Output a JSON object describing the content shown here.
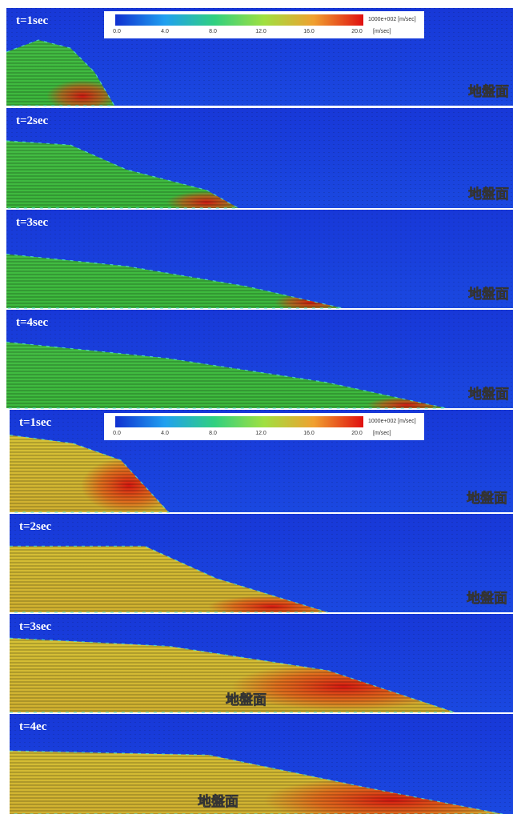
{
  "figure": {
    "groups": [
      {
        "colorbar": {
          "ticks": [
            "0.0",
            "4.0",
            "8.0",
            "12.0",
            "16.0",
            "20.0"
          ],
          "unit_top": "1000e+002 [m/sec]",
          "unit_bottom": "[m/sec]"
        },
        "panels": [
          {
            "label": "t=1sec",
            "ground_label": "地盤面"
          },
          {
            "label": "t=2sec",
            "ground_label": "地盤面"
          },
          {
            "label": "t=3sec",
            "ground_label": "地盤面"
          },
          {
            "label": "t=4sec",
            "ground_label": "地盤面"
          }
        ]
      },
      {
        "colorbar": {
          "ticks": [
            "0.0",
            "4.0",
            "8.0",
            "12.0",
            "16.0",
            "20.0"
          ],
          "unit_top": "1000e+002 [m/sec]",
          "unit_bottom": "[m/sec]"
        },
        "panels": [
          {
            "label": "t=1sec",
            "ground_label": "地盤面"
          },
          {
            "label": "t=2sec",
            "ground_label": "地盤面"
          },
          {
            "label": "t=3sec",
            "ground_label": "地盤面"
          },
          {
            "label": "t=4ec",
            "ground_label": "地盤面"
          }
        ]
      }
    ]
  }
}
